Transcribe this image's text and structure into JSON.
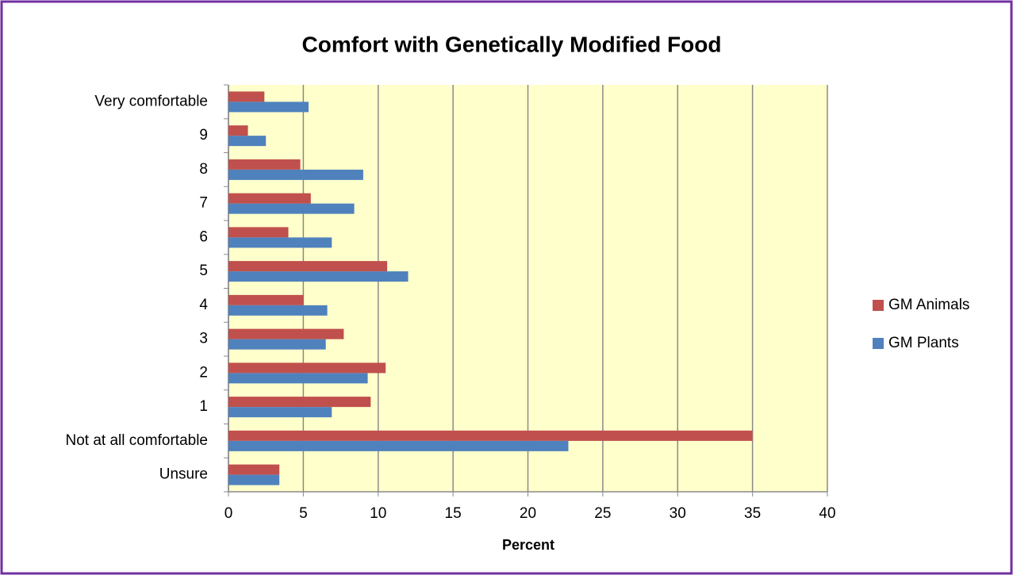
{
  "chart_data": {
    "type": "bar",
    "orientation": "horizontal",
    "title": "Comfort with Genetically Modified Food",
    "x_label": "Percent",
    "categories": [
      "Unsure",
      "Not at all comfortable",
      "1",
      "2",
      "3",
      "4",
      "5",
      "6",
      "7",
      "8",
      "9",
      "Very comfortable"
    ],
    "series": [
      {
        "name": "GM Animals",
        "color": "#c0504d",
        "values": [
          3.4,
          35.0,
          9.5,
          10.5,
          7.7,
          5.0,
          10.6,
          4.0,
          5.5,
          4.8,
          1.3,
          2.4
        ]
      },
      {
        "name": "GM Plants",
        "color": "#4f81bd",
        "values": [
          3.4,
          22.7,
          6.9,
          9.3,
          6.5,
          6.6,
          12.0,
          6.9,
          8.4,
          9.0,
          2.5,
          5.35
        ]
      }
    ],
    "xlim": [
      0,
      40
    ],
    "xticks": [
      0,
      5,
      10,
      15,
      20,
      25,
      30,
      35,
      40
    ],
    "grid": true,
    "legend": "right",
    "plot_background": "#ffffcc"
  }
}
